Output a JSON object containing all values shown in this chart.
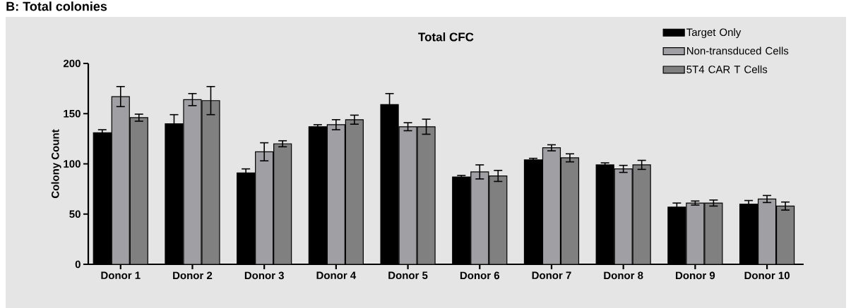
{
  "chart_data": {
    "type": "bar",
    "title": "Total CFC",
    "ylabel": "Colony Count",
    "annotations": [
      "B: Total colonies"
    ],
    "categories": [
      "Donor 1",
      "Donor 2",
      "Donor 3",
      "Donor 4",
      "Donor 5",
      "Donor 6",
      "Donor 7",
      "Donor 8",
      "Donor 9",
      "Donor 10"
    ],
    "series": [
      {
        "name": "Target Only",
        "color": "#000000",
        "values": [
          131,
          140,
          91,
          137,
          159,
          87,
          104,
          99,
          57,
          60
        ],
        "errors": [
          3,
          9,
          4,
          2,
          11,
          1.5,
          1.5,
          2,
          4,
          3.5
        ]
      },
      {
        "name": "Non-transduced Cells",
        "color": "#a0a0a4",
        "values": [
          167,
          164,
          112,
          139,
          137,
          92,
          116,
          95,
          61,
          65
        ],
        "errors": [
          10,
          6,
          9,
          5,
          4,
          7,
          3,
          3.5,
          2,
          3.5
        ]
      },
      {
        "name": "5T4 CAR T Cells",
        "color": "#808080",
        "values": [
          146,
          163,
          120,
          144,
          137,
          88,
          106,
          99,
          61,
          58
        ],
        "errors": [
          3.5,
          14,
          3,
          4.5,
          7.5,
          5.5,
          4,
          4.5,
          3,
          4
        ]
      }
    ],
    "ylim": [
      0,
      200
    ],
    "yticks": [
      0,
      50,
      100,
      150,
      200
    ],
    "legend": "top right"
  }
}
